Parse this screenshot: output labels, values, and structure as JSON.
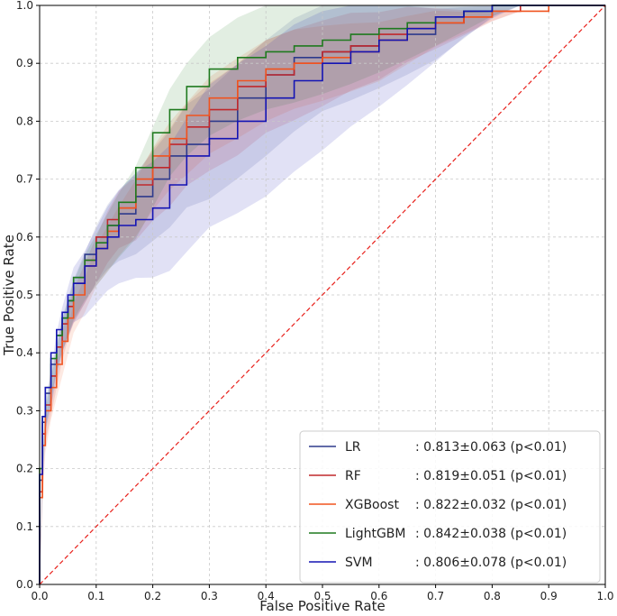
{
  "chart_data": {
    "type": "line",
    "title": "",
    "xlabel": "False Positive Rate",
    "ylabel": "True Positive Rate",
    "xlim": [
      0.0,
      1.0
    ],
    "ylim": [
      0.0,
      1.0
    ],
    "grid": true,
    "xticks": [
      "0.0",
      "0.1",
      "0.2",
      "0.3",
      "0.4",
      "0.5",
      "0.6",
      "0.7",
      "0.8",
      "0.9",
      "1.0"
    ],
    "yticks": [
      "0.0",
      "0.1",
      "0.2",
      "0.3",
      "0.4",
      "0.5",
      "0.6",
      "0.7",
      "0.8",
      "0.9",
      "1.0"
    ],
    "legend_position": "bottom-right",
    "chance_line": {
      "name": "chance",
      "color": "#e8201b",
      "x": [
        0,
        1
      ],
      "y": [
        0,
        1
      ]
    },
    "series": [
      {
        "name": "LR",
        "legend_label": "LR",
        "auc_text": ": 0.813±0.063 (p<0.01)",
        "color": "#2e3a8c",
        "x": [
          0,
          0.005,
          0.01,
          0.02,
          0.03,
          0.04,
          0.05,
          0.06,
          0.08,
          0.1,
          0.12,
          0.14,
          0.17,
          0.2,
          0.23,
          0.26,
          0.3,
          0.35,
          0.4,
          0.45,
          0.5,
          0.55,
          0.6,
          0.65,
          0.7,
          0.75,
          0.8,
          0.85,
          0.9,
          0.95,
          1.0
        ],
        "y": [
          0,
          0.18,
          0.28,
          0.33,
          0.38,
          0.43,
          0.46,
          0.49,
          0.53,
          0.57,
          0.6,
          0.62,
          0.64,
          0.67,
          0.7,
          0.74,
          0.76,
          0.8,
          0.84,
          0.88,
          0.91,
          0.92,
          0.93,
          0.94,
          0.95,
          0.97,
          0.99,
          1.0,
          1.0,
          1.0,
          1.0
        ],
        "band": 0.1
      },
      {
        "name": "RF",
        "legend_label": "RF",
        "auc_text": ": 0.819±0.051 (p<0.01)",
        "color": "#c0282c",
        "x": [
          0,
          0.005,
          0.01,
          0.02,
          0.03,
          0.04,
          0.05,
          0.06,
          0.08,
          0.1,
          0.12,
          0.14,
          0.17,
          0.2,
          0.23,
          0.26,
          0.3,
          0.35,
          0.4,
          0.45,
          0.5,
          0.55,
          0.6,
          0.65,
          0.7,
          0.75,
          0.8,
          0.85,
          0.9,
          0.95,
          1.0
        ],
        "y": [
          0,
          0.16,
          0.26,
          0.31,
          0.36,
          0.41,
          0.45,
          0.48,
          0.52,
          0.56,
          0.6,
          0.63,
          0.65,
          0.69,
          0.72,
          0.76,
          0.79,
          0.82,
          0.86,
          0.88,
          0.9,
          0.92,
          0.93,
          0.95,
          0.96,
          0.97,
          0.98,
          0.99,
          1.0,
          1.0,
          1.0
        ],
        "band": 0.08
      },
      {
        "name": "XGBoost",
        "legend_label": "XGBoost",
        "auc_text": ": 0.822±0.032 (p<0.01)",
        "color": "#f0531f",
        "x": [
          0,
          0.005,
          0.01,
          0.02,
          0.03,
          0.04,
          0.05,
          0.06,
          0.08,
          0.1,
          0.12,
          0.14,
          0.17,
          0.2,
          0.23,
          0.26,
          0.3,
          0.35,
          0.4,
          0.45,
          0.5,
          0.55,
          0.6,
          0.65,
          0.7,
          0.75,
          0.8,
          0.85,
          0.9,
          0.95,
          1.0
        ],
        "y": [
          0,
          0.15,
          0.24,
          0.3,
          0.34,
          0.38,
          0.42,
          0.46,
          0.5,
          0.55,
          0.58,
          0.61,
          0.65,
          0.7,
          0.74,
          0.77,
          0.81,
          0.84,
          0.87,
          0.89,
          0.9,
          0.91,
          0.92,
          0.94,
          0.96,
          0.97,
          0.98,
          0.99,
          0.99,
          1.0,
          1.0
        ],
        "band": 0.07
      },
      {
        "name": "LightGBM",
        "legend_label": "LightGBM",
        "auc_text": ": 0.842±0.038 (p<0.01)",
        "color": "#1f7a1f",
        "x": [
          0,
          0.005,
          0.01,
          0.02,
          0.03,
          0.04,
          0.05,
          0.06,
          0.08,
          0.1,
          0.12,
          0.14,
          0.17,
          0.2,
          0.23,
          0.26,
          0.3,
          0.35,
          0.4,
          0.45,
          0.5,
          0.55,
          0.6,
          0.65,
          0.7,
          0.75,
          0.8,
          0.85,
          0.9,
          0.95,
          1.0
        ],
        "y": [
          0,
          0.2,
          0.29,
          0.34,
          0.39,
          0.43,
          0.46,
          0.49,
          0.53,
          0.56,
          0.59,
          0.62,
          0.66,
          0.72,
          0.78,
          0.82,
          0.86,
          0.89,
          0.91,
          0.92,
          0.93,
          0.94,
          0.95,
          0.96,
          0.97,
          0.98,
          0.99,
          1.0,
          1.0,
          1.0,
          1.0
        ],
        "band": 0.09
      },
      {
        "name": "SVM",
        "legend_label": "SVM",
        "auc_text": ": 0.806±0.078 (p<0.01)",
        "color": "#1414b4",
        "x": [
          0,
          0.005,
          0.01,
          0.02,
          0.03,
          0.04,
          0.05,
          0.06,
          0.08,
          0.1,
          0.12,
          0.14,
          0.17,
          0.2,
          0.23,
          0.26,
          0.3,
          0.35,
          0.4,
          0.45,
          0.5,
          0.55,
          0.6,
          0.65,
          0.7,
          0.75,
          0.8,
          0.85,
          0.9,
          0.95,
          1.0
        ],
        "y": [
          0,
          0.19,
          0.29,
          0.34,
          0.4,
          0.44,
          0.47,
          0.5,
          0.52,
          0.55,
          0.58,
          0.6,
          0.62,
          0.63,
          0.65,
          0.69,
          0.74,
          0.77,
          0.8,
          0.84,
          0.87,
          0.9,
          0.92,
          0.94,
          0.96,
          0.98,
          0.99,
          1.0,
          1.0,
          1.0,
          1.0
        ],
        "band": 0.13
      }
    ]
  }
}
